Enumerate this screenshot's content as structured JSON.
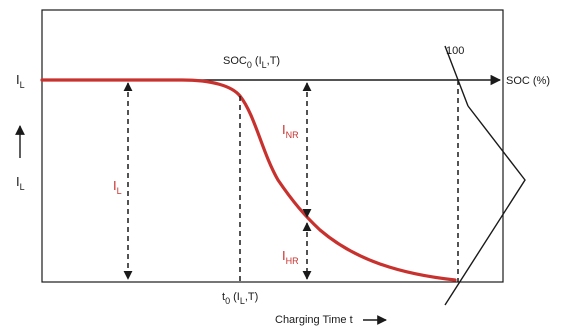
{
  "diagram": {
    "labels": {
      "il_left": "I",
      "il_left_sub": "L",
      "il_axis": "I",
      "il_axis_sub": "L",
      "soc0_main": "SOC",
      "soc0_sub": "0",
      "soc0_args_a": " (I",
      "soc0_args_sub": "L",
      "soc0_args_b": ",T)",
      "val_100": "100",
      "soc_pct": "SOC (%)",
      "il_red": "I",
      "il_red_sub": "L",
      "inr": "I",
      "inr_sub": "NR",
      "ihr": "I",
      "ihr_sub": "HR",
      "t0_main": "t",
      "t0_sub": "0",
      "t0_args_a": " (I",
      "t0_args_sub": "L",
      "t0_args_b": ",T)",
      "charging_time": "Charging Time t"
    },
    "colors": {
      "curve": "#c8322e",
      "line": "#1a1a1a"
    }
  }
}
